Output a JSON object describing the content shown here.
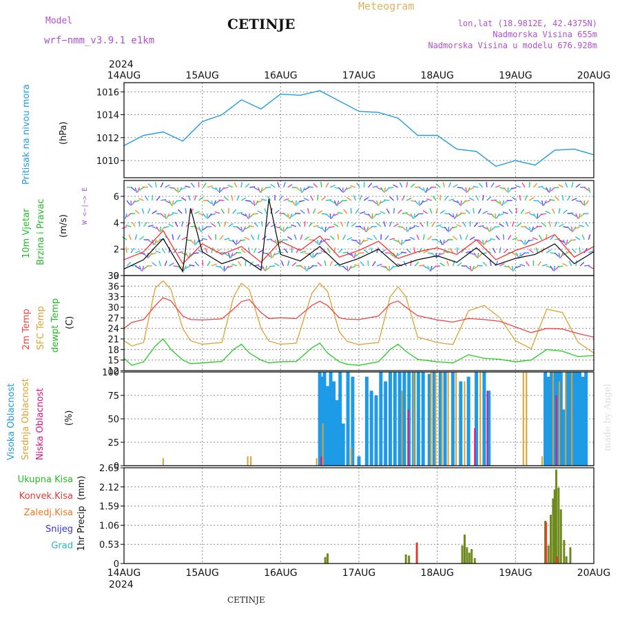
{
  "header": {
    "model_label": "Model",
    "model_name": "wrf−nmm_v3.9.1  e1km",
    "station": "CETINJE",
    "product": "Meteogram",
    "coords": "lon,lat (18.9812E, 42.4375N)",
    "elevation": "Nadmorska Visina 655m",
    "model_elevation": "Nadmorska Visina u modelu 676.928m",
    "year_top": "2024",
    "year_bottom": "2024",
    "footer_station": "CETINJE",
    "credit": "made by Angel"
  },
  "colors": {
    "pressure": "#1e9be6",
    "wind_speed": "#000000",
    "gust": "#ff2020",
    "t2m": "#ee4444",
    "sfc": "#e0a030",
    "dewpt": "#22cc22",
    "high_cloud": "#1e9be6",
    "mid_cloud": "#e0a030",
    "low_cloud": "#dd1188",
    "total_precip": "#6e8a1e",
    "conv_precip": "#ee3333",
    "grid": "#888888"
  },
  "chart_data": [
    {
      "type": "line",
      "id": "pressure",
      "ylabel_main": "Pritisak na nivou mora",
      "ylabel_unit": "(hPa)",
      "ylim": [
        1008.5,
        1016.8
      ],
      "yticks": [
        "1010",
        "1012",
        "1014",
        "1016"
      ],
      "x_labels": [
        "14AUG",
        "15AUG",
        "16AUG",
        "17AUG",
        "18AUG",
        "19AUG",
        "20AUG"
      ],
      "series": [
        {
          "x": [
            0,
            0.25,
            0.5,
            0.75,
            1,
            1.25,
            1.5,
            1.75,
            2,
            2.25,
            2.5,
            2.75,
            3,
            3.25,
            3.5,
            3.75,
            4,
            4.25,
            4.5,
            4.75,
            5,
            5.25,
            5.5,
            5.75,
            6
          ],
          "values": [
            1011.3,
            1012.2,
            1012.5,
            1011.7,
            1013.4,
            1014,
            1015.3,
            1014.5,
            1015.8,
            1015.7,
            1016.1,
            1015.2,
            1014.3,
            1014.2,
            1013.7,
            1012.2,
            1012.2,
            1011,
            1010.8,
            1009.5,
            1010.0,
            1009.6,
            1010.9,
            1011.0,
            1010.5
          ]
        }
      ]
    },
    {
      "type": "line",
      "id": "wind",
      "ylabel_main": "10m Vjetar",
      "ylabel_sub": "Brzina i Pravac",
      "ylabel_unit": "(m/s)",
      "compass": "W <−|−> E",
      "ylim": [
        0,
        7.2
      ],
      "yticks": [
        "0",
        "2",
        "4",
        "6"
      ],
      "series": [
        {
          "name": "speed",
          "x": [
            0,
            0.25,
            0.5,
            0.75,
            0.85,
            1,
            1.25,
            1.5,
            1.75,
            1.85,
            2,
            2.25,
            2.5,
            2.75,
            3,
            3.25,
            3.5,
            3.75,
            4,
            4.25,
            4.5,
            4.75,
            5,
            5.25,
            5.5,
            5.75,
            6
          ],
          "values": [
            0.5,
            1.2,
            2.8,
            0.3,
            5.1,
            1.8,
            0.9,
            1.4,
            0.4,
            5.8,
            1.6,
            1.1,
            2.2,
            0.8,
            1.3,
            2.0,
            0.7,
            1.2,
            1.5,
            1.0,
            2.1,
            0.8,
            1.3,
            1.6,
            2.4,
            0.9,
            1.8
          ]
        },
        {
          "name": "gust",
          "x": [
            0,
            0.25,
            0.5,
            0.75,
            1,
            1.25,
            1.5,
            1.75,
            2,
            2.25,
            2.5,
            2.75,
            3,
            3.25,
            3.5,
            3.75,
            4,
            4.25,
            4.5,
            4.75,
            5,
            5.25,
            5.5,
            5.75,
            6
          ],
          "values": [
            1.2,
            1.8,
            3.4,
            0.9,
            2.4,
            1.6,
            2.2,
            1.0,
            2.6,
            1.9,
            3.0,
            1.4,
            1.9,
            2.6,
            1.3,
            1.8,
            2.1,
            1.6,
            2.7,
            1.2,
            1.9,
            2.4,
            3.1,
            1.4,
            2.2
          ]
        }
      ]
    },
    {
      "type": "line",
      "id": "temperature",
      "ylabel_a": "2m Temp",
      "ylabel_b": "SFC Temp",
      "ylabel_c": "dewpt Temp",
      "ylabel_unit": "(C)",
      "ylim": [
        12,
        39
      ],
      "yticks": [
        "12",
        "15",
        "18",
        "21",
        "24",
        "27",
        "30",
        "33",
        "36",
        "39"
      ],
      "series": [
        {
          "name": "2m",
          "x": [
            0,
            0.1,
            0.25,
            0.4,
            0.5,
            0.6,
            0.75,
            0.85,
            1,
            1.25,
            1.4,
            1.5,
            1.6,
            1.75,
            1.85,
            2,
            2.2,
            2.4,
            2.5,
            2.6,
            2.75,
            2.85,
            3,
            3.25,
            3.4,
            3.5,
            3.6,
            3.75,
            4,
            4.2,
            4.4,
            4.6,
            4.8,
            5,
            5.2,
            5.4,
            5.6,
            5.8,
            6
          ],
          "values": [
            24,
            25.7,
            26.5,
            30.5,
            32.7,
            31.8,
            27.5,
            26.5,
            26.4,
            26.7,
            29.5,
            31.6,
            32.2,
            28.5,
            26.8,
            27.0,
            26.8,
            30.5,
            31.7,
            30.5,
            27.0,
            26.6,
            26.5,
            27.5,
            31.0,
            31.8,
            30.0,
            27.6,
            26.4,
            25.8,
            26.8,
            26.5,
            26.0,
            24.4,
            22.8,
            24.0,
            23.8,
            22.5,
            21.5
          ]
        },
        {
          "name": "sfc",
          "x": [
            0,
            0.1,
            0.25,
            0.4,
            0.5,
            0.6,
            0.75,
            0.85,
            1,
            1.25,
            1.4,
            1.5,
            1.6,
            1.75,
            1.85,
            2,
            2.2,
            2.4,
            2.5,
            2.6,
            2.75,
            2.85,
            3,
            3.25,
            3.4,
            3.5,
            3.6,
            3.75,
            4,
            4.2,
            4.4,
            4.6,
            4.8,
            5,
            5.2,
            5.4,
            5.6,
            5.8,
            6
          ],
          "values": [
            20.5,
            19,
            20,
            35.5,
            37.5,
            35,
            24,
            20.5,
            19.5,
            20,
            33,
            36.8,
            35,
            24,
            20.4,
            19.5,
            19.8,
            34,
            36.8,
            34.5,
            23,
            20.3,
            19.4,
            20,
            33,
            35.8,
            33,
            21.5,
            20,
            19.4,
            29,
            30.5,
            27,
            20.5,
            18.2,
            29.5,
            28.5,
            20,
            17
          ]
        },
        {
          "name": "dewpt",
          "x": [
            0,
            0.1,
            0.25,
            0.4,
            0.5,
            0.6,
            0.75,
            0.85,
            1,
            1.25,
            1.4,
            1.5,
            1.6,
            1.75,
            1.85,
            2,
            2.2,
            2.4,
            2.5,
            2.6,
            2.75,
            2.85,
            3,
            3.25,
            3.4,
            3.5,
            3.6,
            3.75,
            4,
            4.2,
            4.4,
            4.6,
            4.8,
            5,
            5.2,
            5.4,
            5.6,
            5.8,
            6
          ],
          "values": [
            15.5,
            13.5,
            14.5,
            19,
            21,
            18,
            15,
            14,
            14.2,
            14.6,
            18,
            19.5,
            17,
            15,
            14.2,
            14.5,
            14.6,
            18.5,
            19.8,
            17,
            14.5,
            13.8,
            13.5,
            14.5,
            18,
            19.5,
            17.5,
            15.2,
            14.5,
            14.2,
            16.5,
            15.5,
            15.2,
            14.5,
            15,
            18,
            17.5,
            16,
            16.3
          ]
        }
      ]
    },
    {
      "type": "bar",
      "id": "cloud",
      "ylabel_a": "Visoka Oblacnost",
      "ylabel_b": "Srednja Oblacnost",
      "ylabel_c": "Niska Oblacnost",
      "ylabel_unit": "(%)",
      "ylim": [
        0,
        100
      ],
      "yticks": [
        "0",
        "25",
        "50",
        "75",
        "100"
      ],
      "series": [
        {
          "name": "high",
          "x": [
            2.5,
            2.53,
            2.56,
            2.6,
            2.64,
            2.68,
            2.72,
            2.76,
            2.8,
            2.86,
            2.92,
            3.0,
            3.1,
            3.16,
            3.22,
            3.28,
            3.34,
            3.4,
            3.46,
            3.52,
            3.58,
            3.64,
            3.7,
            3.76,
            3.82,
            3.9,
            3.96,
            4.04,
            4.1,
            4.2,
            4.3,
            4.4,
            4.5,
            4.6,
            4.66,
            5.38,
            5.42,
            5.46,
            5.5,
            5.54,
            5.58,
            5.62,
            5.66,
            5.7,
            5.74,
            5.78,
            5.82,
            5.86,
            5.9
          ],
          "values": [
            100,
            95,
            100,
            85,
            100,
            90,
            70,
            100,
            45,
            100,
            95,
            10,
            95,
            80,
            75,
            100,
            90,
            100,
            100,
            100,
            100,
            100,
            100,
            100,
            100,
            98,
            100,
            100,
            100,
            100,
            90,
            95,
            100,
            100,
            80,
            100,
            95,
            100,
            100,
            100,
            100,
            60,
            100,
            100,
            100,
            100,
            100,
            95,
            100
          ]
        },
        {
          "name": "mid",
          "x": [
            0.5,
            1.58,
            1.62,
            2.46,
            2.54,
            2.9,
            3.55,
            3.7,
            3.92,
            3.98,
            4.06,
            4.14,
            4.24,
            4.35,
            4.55,
            5.1,
            5.14,
            5.34,
            5.48,
            5.56,
            5.64,
            5.72
          ],
          "values": [
            8,
            10,
            10,
            8,
            45,
            20,
            80,
            100,
            100,
            100,
            100,
            100,
            100,
            90,
            100,
            100,
            100,
            10,
            100,
            90,
            100,
            100
          ]
        },
        {
          "name": "low",
          "x": [
            2.52,
            3.63,
            4.48,
            4.64,
            5.52
          ],
          "values": [
            10,
            60,
            40,
            80,
            75
          ]
        }
      ]
    },
    {
      "type": "bar",
      "id": "precip",
      "ylabel_main": "1hr Precip",
      "ylabel_unit": "(mm)",
      "ylim": [
        0,
        2.65
      ],
      "yticks": [
        "0",
        "0.53",
        "1.06",
        "1.59",
        "2.12",
        "2.65"
      ],
      "legend": [
        "Ukupna Kisa",
        "Konvek.Kisa",
        "Zaledj.Kisa",
        "Snijeg",
        "Grad"
      ],
      "legend_colors": [
        "#22bb22",
        "#ee3333",
        "#ee7722",
        "#3333dd",
        "#22bbbb"
      ],
      "series": [
        {
          "name": "total",
          "x": [
            2.57,
            2.6,
            3.6,
            3.64,
            3.74,
            4.32,
            4.35,
            4.38,
            4.41,
            4.44,
            4.48,
            5.38,
            5.42,
            5.45,
            5.48,
            5.5,
            5.52,
            5.55,
            5.58,
            5.62,
            5.65,
            5.7
          ],
          "values": [
            0.18,
            0.28,
            0.25,
            0.22,
            0.58,
            0.5,
            0.8,
            0.45,
            0.3,
            0.4,
            0.15,
            1.18,
            0.5,
            1.35,
            1.8,
            2.05,
            2.6,
            2.1,
            1.5,
            0.65,
            0.2,
            0.45
          ]
        },
        {
          "name": "convective",
          "x": [
            3.74,
            5.39,
            5.53
          ],
          "values": [
            0.58,
            1.15,
            0.2
          ]
        }
      ]
    }
  ]
}
